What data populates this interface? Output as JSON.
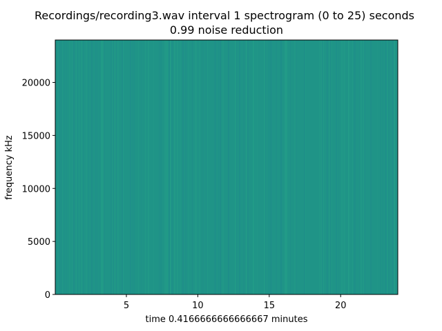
{
  "chart_data": {
    "type": "heatmap",
    "title": "Recordings/recording3.wav interval 1 spectrogram (0 to 25) seconds",
    "subtitle": "0.99 noise reduction",
    "xlabel": "time 0.4166666666666667 minutes",
    "ylabel": "frequency kHz",
    "xlim": [
      0.02,
      24
    ],
    "ylim": [
      0,
      24000
    ],
    "x_ticks": [
      5,
      10,
      15,
      20
    ],
    "y_ticks": [
      0,
      5000,
      10000,
      15000,
      20000
    ],
    "x_tick_labels": [
      "5",
      "10",
      "15",
      "20"
    ],
    "y_tick_labels": [
      "0",
      "5000",
      "10000",
      "15000",
      "20000"
    ],
    "grid": false,
    "colors": {
      "base": "#1f9487",
      "light": "#24a088",
      "dark": "#1f8a8c"
    }
  }
}
